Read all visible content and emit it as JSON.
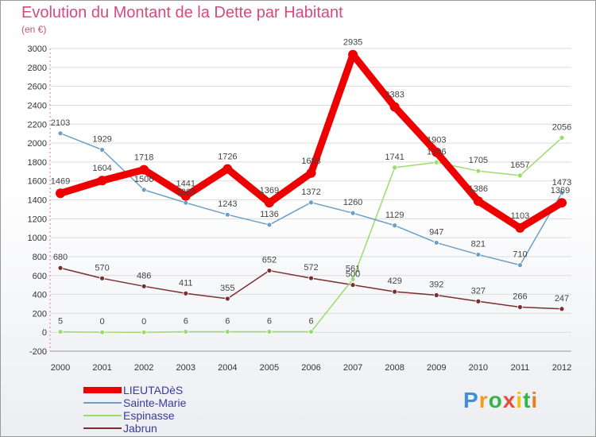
{
  "chart_data": {
    "type": "line",
    "title": "Evolution du Montant de la Dette par Habitant",
    "subtitle": "(en €)",
    "categories": [
      "2000",
      "2001",
      "2002",
      "2003",
      "2004",
      "2005",
      "2006",
      "2007",
      "2008",
      "2009",
      "2010",
      "2011",
      "2012"
    ],
    "ylim": [
      -200,
      3000
    ],
    "yticks": [
      -200,
      0,
      200,
      400,
      600,
      800,
      1000,
      1200,
      1400,
      1600,
      1800,
      2000,
      2200,
      2400,
      2600,
      2800,
      3000
    ],
    "grid": "horizontal",
    "legend_position": "bottom-left",
    "series": [
      {
        "name": "LIEUTADèS",
        "color": "#ee0000",
        "values": [
          1469,
          1604,
          1718,
          1441,
          1726,
          1369,
          1683,
          2935,
          2383,
          1903,
          1386,
          1103,
          1369
        ]
      },
      {
        "name": "Sainte-Marie",
        "color": "#6d9ec6",
        "values": [
          2103,
          1929,
          1506,
          1369,
          1243,
          1136,
          1372,
          1260,
          1129,
          947,
          821,
          710,
          1473
        ]
      },
      {
        "name": "Espinasse",
        "color": "#9bdd6b",
        "values": [
          5,
          0,
          0,
          6,
          6,
          6,
          6,
          561,
          1741,
          1796,
          1705,
          1657,
          2056
        ]
      },
      {
        "name": "Jabrun",
        "color": "#7a2f2f",
        "values": [
          680,
          570,
          486,
          411,
          355,
          652,
          572,
          500,
          429,
          392,
          327,
          266,
          247
        ]
      }
    ]
  },
  "logo": {
    "letters": [
      "P",
      "r",
      "o",
      "x",
      "i",
      "t",
      "i"
    ],
    "colors": [
      "#3d8fd9",
      "#f39c1e",
      "#37b24d",
      "#e74c3c",
      "#f1c40f",
      "#37b24d",
      "#e67e22"
    ]
  }
}
